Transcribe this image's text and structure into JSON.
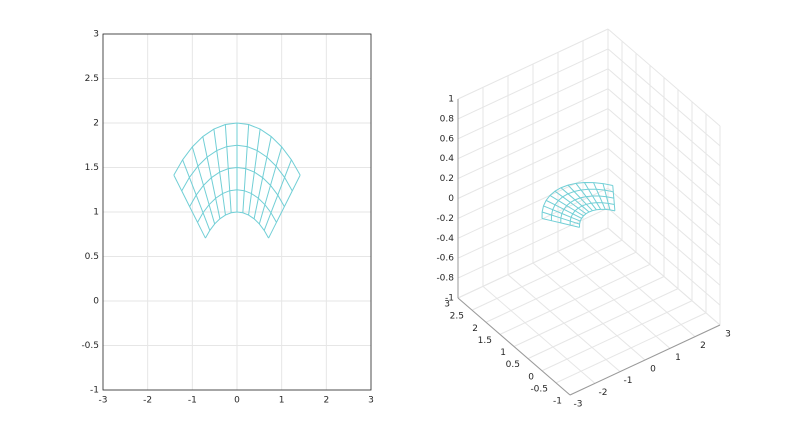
{
  "chart_data": [
    {
      "type": "mesh",
      "color": "#72cfd6",
      "grid": true,
      "xlim": [
        -3,
        3
      ],
      "ylim": [
        -1,
        3
      ],
      "xticks": [
        -3,
        -2,
        -1,
        0,
        1,
        2,
        3
      ],
      "yticks": [
        -1,
        -0.5,
        0,
        0.5,
        1,
        1.5,
        2,
        2.5,
        3
      ],
      "r": [
        1,
        1.25,
        1.5,
        1.75,
        2
      ],
      "theta": [
        45,
        52.5,
        60,
        67.5,
        75,
        82.5,
        90,
        97.5,
        105,
        112.5,
        120,
        127.5,
        135
      ]
    },
    {
      "type": "mesh3d",
      "color": "#72cfd6",
      "grid": true,
      "xlim": [
        -3,
        3
      ],
      "ylim": [
        -1,
        3
      ],
      "zlim": [
        -1,
        1
      ],
      "xticks": [
        -3,
        -2,
        -1,
        0,
        1,
        2,
        3
      ],
      "yticks": [
        -1,
        -0.5,
        0,
        0.5,
        1,
        1.5,
        2,
        2.5,
        3
      ],
      "zticks": [
        -1,
        -0.8,
        -0.6,
        -0.4,
        -0.2,
        0,
        0.2,
        0.4,
        0.6,
        0.8,
        1
      ],
      "z": 0,
      "r": [
        1,
        1.25,
        1.5,
        1.75,
        2
      ],
      "theta": [
        45,
        52.5,
        60,
        67.5,
        75,
        82.5,
        90,
        97.5,
        105,
        112.5,
        120,
        127.5,
        135
      ]
    }
  ]
}
